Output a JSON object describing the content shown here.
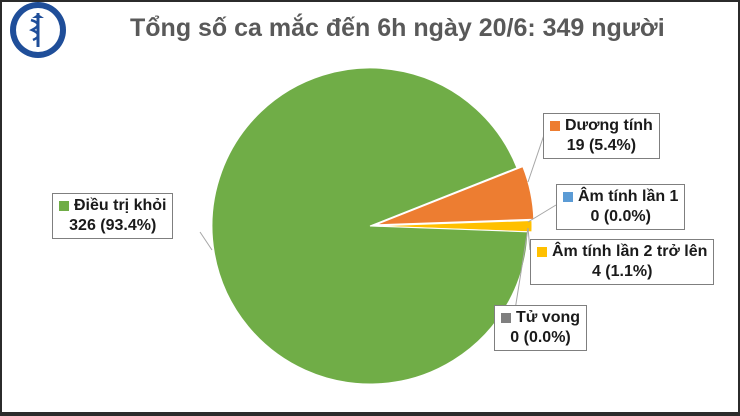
{
  "chart_data": {
    "type": "pie",
    "title": "Tổng số ca mắc đến 6h ngày 20/6: 349 người",
    "slices": [
      {
        "label": "Dương tính",
        "value": 19,
        "display": "19 (5.4%)",
        "color": "#ED7D31"
      },
      {
        "label": "Âm tính lần 1",
        "value": 0,
        "display": "0 (0.0%)",
        "color": "#5B9BD5"
      },
      {
        "label": "Âm tính lần 2 trở lên",
        "value": 4,
        "display": "4 (1.1%)",
        "color": "#FFC000"
      },
      {
        "label": "Tử vong",
        "value": 0,
        "display": "0 (0.0%)",
        "color": "#7F7F7F"
      },
      {
        "label": "Điều trị khỏi",
        "value": 326,
        "display": "326 (93.4%)",
        "color": "#70AD47"
      }
    ]
  },
  "logo": {
    "caption_top": "BỘ Y TẾ",
    "caption_bottom": "MINISTRY OF HEALTH"
  }
}
